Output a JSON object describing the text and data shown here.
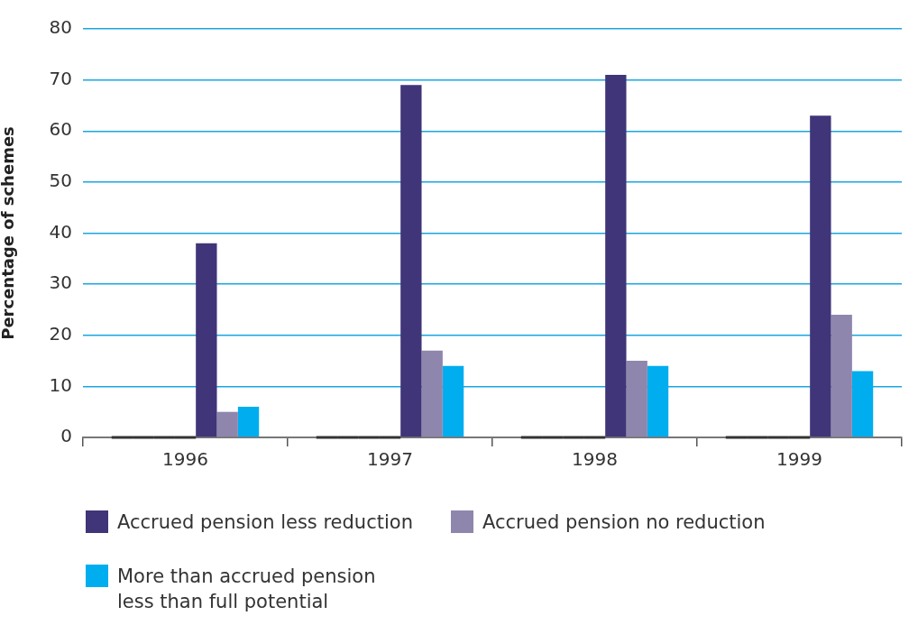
{
  "chart_data": {
    "type": "bar",
    "ylabel": "Percentage of schemes",
    "categories": [
      "1996",
      "1997",
      "1998",
      "1999"
    ],
    "series": [
      {
        "color": "#333333",
        "values": [
          0,
          0,
          0,
          0
        ]
      },
      {
        "color": "#333333",
        "values": [
          0,
          0,
          0,
          0
        ]
      },
      {
        "color": "#333333",
        "values": [
          0,
          0,
          0,
          0
        ]
      },
      {
        "color": "#333333",
        "values": [
          0,
          0,
          0,
          0
        ]
      },
      {
        "name": "Accrued pension less reduction",
        "color": "#403578",
        "values": [
          38,
          69,
          71,
          63
        ]
      },
      {
        "name": "Accrued pension no reduction",
        "color": "#8f86ad",
        "values": [
          5,
          17,
          15,
          24
        ]
      },
      {
        "name": "More than accrued pension less than full potential",
        "color": "#00adee",
        "values": [
          6,
          14,
          14,
          13
        ]
      }
    ],
    "ylim": [
      0,
      80
    ],
    "yticks": [
      0,
      10,
      20,
      30,
      40,
      50,
      60,
      70,
      80
    ],
    "grid": "y",
    "legend": "bottom"
  }
}
